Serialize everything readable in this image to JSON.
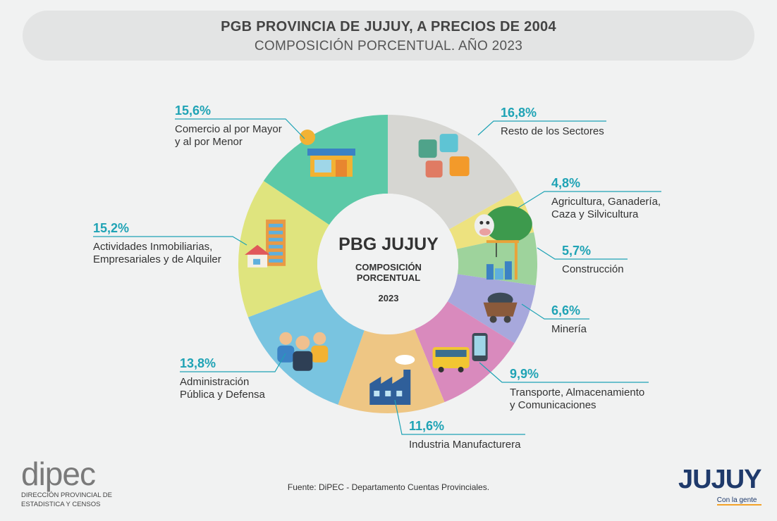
{
  "title": {
    "line1": "PGB PROVINCIA DE JUJUY, A PRECIOS DE 2004",
    "line2": "COMPOSICIÓN PORCENTUAL. AÑO 2023"
  },
  "center": {
    "title": "PBG JUJUY",
    "sub1": "COMPOSICIÓN",
    "sub2": "PORCENTUAL",
    "year": "2023"
  },
  "chart_data": {
    "type": "pie",
    "variant": "donut",
    "title": "PGB PROVINCIA DE JUJUY, A PRECIOS DE 2004",
    "subtitle": "COMPOSICIÓN PORCENTUAL. AÑO 2023",
    "slices": [
      {
        "name": "Resto de los Sectores",
        "label_lines": [
          "Resto de los Sectores"
        ],
        "value": 16.8,
        "value_label": "16,8%",
        "color": "#d6d6d2",
        "icon": "puzzle-icon"
      },
      {
        "name": "Agricultura, Ganadería, Caza y Silvicultura",
        "label_lines": [
          "Agricultura, Ganadería,",
          "Caza y Silvicultura"
        ],
        "value": 4.8,
        "value_label": "4,8%",
        "color": "#ede27f",
        "icon": "cow-field-icon"
      },
      {
        "name": "Construcción",
        "label_lines": [
          "Construcción"
        ],
        "value": 5.7,
        "value_label": "5,7%",
        "color": "#9ed39c",
        "icon": "crane-icon"
      },
      {
        "name": "Minería",
        "label_lines": [
          "Minería"
        ],
        "value": 6.6,
        "value_label": "6,6%",
        "color": "#a7a8dc",
        "icon": "mine-cart-icon"
      },
      {
        "name": "Transporte, Almacenamiento y Comunicaciones",
        "label_lines": [
          "Transporte, Almacenamiento",
          "y Comunicaciones"
        ],
        "value": 9.9,
        "value_label": "9,9%",
        "color": "#d98abd",
        "icon": "bus-phone-icon"
      },
      {
        "name": "Industria Manufacturera",
        "label_lines": [
          "Industria Manufacturera"
        ],
        "value": 11.6,
        "value_label": "11,6%",
        "color": "#eec684",
        "icon": "factory-icon"
      },
      {
        "name": "Administración Pública y Defensa",
        "label_lines": [
          "Administración",
          "Pública y Defensa"
        ],
        "value": 13.8,
        "value_label": "13,8%",
        "color": "#79c4e0",
        "icon": "people-icon"
      },
      {
        "name": "Actividades Inmobiliarias, Empresariales y de Alquiler",
        "label_lines": [
          "Actividades Inmobiliarias,",
          "Empresariales y de Alquiler"
        ],
        "value": 15.2,
        "value_label": "15,2%",
        "color": "#dfe47e",
        "icon": "buildings-icon"
      },
      {
        "name": "Comercio al por Mayor y al por Menor",
        "label_lines": [
          "Comercio al por Mayor",
          "y al por Menor"
        ],
        "value": 15.6,
        "value_label": "15,6%",
        "color": "#5cc9a7",
        "icon": "store-icon"
      }
    ],
    "leader_color": "#1fa3b5"
  },
  "source": "Fuente: DiPEC - Departamento Cuentas Provinciales.",
  "logos": {
    "dipec_word": "dipec",
    "dipec_line1": "DIRECCIÓN PROVINCIAL DE",
    "dipec_line2": "ESTADISTICA Y CENSOS",
    "jujuy_word": "JUJUY",
    "jujuy_tag": "Con la gente"
  }
}
